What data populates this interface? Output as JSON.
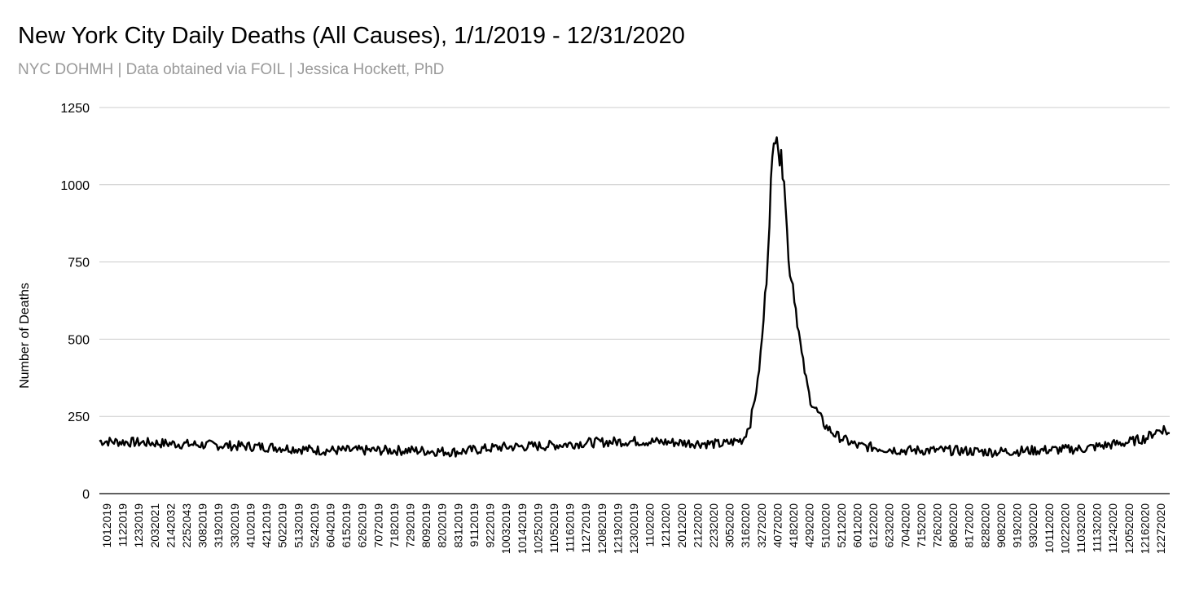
{
  "chart_data": {
    "type": "line",
    "title": "New York City Daily Deaths (All Causes), 1/1/2019 - 12/31/2020",
    "subtitle": "NYC DOHMH | Data obtained via FOIL | Jessica Hockett, PhD",
    "xlabel": "",
    "ylabel": "Number of Deaths",
    "ylim": [
      0,
      1250
    ],
    "yticks": [
      0,
      250,
      500,
      750,
      1000,
      1250
    ],
    "grid": true,
    "legend": "none",
    "line_color": "#000000",
    "x_tick_labels": [
      "1012019",
      "1122019",
      "1232019",
      "2032021",
      "2142032",
      "2252043",
      "3082019",
      "3192019",
      "3302019",
      "4102019",
      "4212019",
      "5022019",
      "5132019",
      "5242019",
      "6042019",
      "6152019",
      "6262019",
      "7072019",
      "7182019",
      "7292019",
      "8092019",
      "8202019",
      "8312019",
      "9112019",
      "9222019",
      "10032019",
      "10142019",
      "10252019",
      "11052019",
      "11162019",
      "11272019",
      "12082019",
      "12192019",
      "12302019",
      "1102020",
      "1212020",
      "2012020",
      "2122020",
      "2232020",
      "3052020",
      "3162020",
      "3272020",
      "4072020",
      "4182020",
      "4292020",
      "5102020",
      "5212020",
      "6012020",
      "6122020",
      "6232020",
      "7042020",
      "7152020",
      "7262020",
      "8062020",
      "8172020",
      "8282020",
      "9082020",
      "9192020",
      "9302020",
      "10112020",
      "10222020",
      "11032020",
      "11132020",
      "11242020",
      "12052020",
      "12162020",
      "12272020"
    ],
    "series": [
      {
        "x": [
          "2019-01-01",
          "2019-02-01",
          "2019-03-01",
          "2019-04-01",
          "2019-05-01",
          "2019-06-01",
          "2019-07-01",
          "2019-08-01",
          "2019-09-01",
          "2019-10-01",
          "2019-11-01",
          "2019-12-01",
          "2020-01-01",
          "2020-01-15",
          "2020-02-01",
          "2020-02-15",
          "2020-03-01",
          "2020-03-15",
          "2020-03-20",
          "2020-03-25",
          "2020-03-28",
          "2020-03-31",
          "2020-04-03",
          "2020-04-06",
          "2020-04-07",
          "2020-04-09",
          "2020-04-12",
          "2020-04-15",
          "2020-04-18",
          "2020-04-21",
          "2020-04-24",
          "2020-04-27",
          "2020-04-30",
          "2020-05-04",
          "2020-05-10",
          "2020-05-17",
          "2020-05-25",
          "2020-06-01",
          "2020-07-01",
          "2020-08-01",
          "2020-09-01",
          "2020-10-01",
          "2020-11-01",
          "2020-11-15",
          "2020-12-01",
          "2020-12-15",
          "2020-12-21",
          "2020-12-27",
          "2020-12-31"
        ],
        "y": [
          170,
          165,
          160,
          155,
          150,
          140,
          140,
          140,
          135,
          150,
          155,
          165,
          170,
          168,
          165,
          163,
          160,
          175,
          230,
          360,
          500,
          700,
          1000,
          1180,
          1200,
          1080,
          1050,
          750,
          680,
          560,
          450,
          370,
          300,
          270,
          220,
          190,
          170,
          155,
          140,
          140,
          135,
          140,
          145,
          155,
          165,
          180,
          200,
          210,
          190
        ]
      }
    ]
  }
}
